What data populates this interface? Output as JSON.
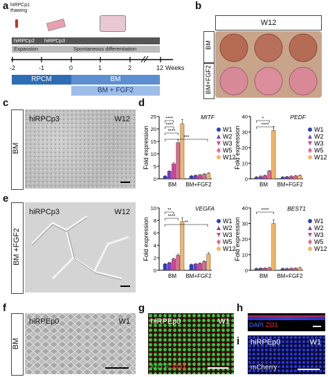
{
  "panels": {
    "a": {
      "label": "a",
      "top_note": "hiRPCp1\nthawing",
      "stage1": "hiRPCp2",
      "stage2": "hiRPCp3",
      "phase1": "Expansion",
      "phase2": "Spontaneous differentiation",
      "ticks": [
        "-2",
        "-1",
        "0",
        "1",
        "2",
        "12"
      ],
      "weeks_label": "Weeks",
      "rpcm": "RPCM",
      "bm": "BM",
      "bm_fgf2": "BM + FGF2",
      "colors": {
        "rpcm": "#2e6db3",
        "bm": "#5b8fd1",
        "bmfgf2": "#9dbde8",
        "stage": "#555555",
        "phase": "#bdbdbd"
      }
    },
    "b": {
      "label": "b",
      "title": "W12",
      "row1": "BM",
      "row2": "BM+FGF2"
    },
    "c": {
      "label": "c",
      "side": "BM",
      "sample": "hiRPCp3",
      "time": "W12"
    },
    "e": {
      "label": "e",
      "side": "BM +FGF2",
      "sample": "hiRPCp3",
      "time": "W12"
    },
    "d": {
      "label": "d"
    },
    "f": {
      "label": "f",
      "side": "BM",
      "sample": "hiRPEp0",
      "time": "W1"
    },
    "g": {
      "label": "g",
      "sample": "hiRPEp0",
      "time": "W1",
      "stain1": "MITF",
      "stain2": "ZO1"
    },
    "h": {
      "label": "h",
      "stain1": "DAPI",
      "stain2": "ZO1"
    },
    "i": {
      "label": "i",
      "sample": "hiRPEp0",
      "time": "W1",
      "stain": "mCherry"
    }
  },
  "chart_data": [
    {
      "type": "bar",
      "gene": "MITF",
      "ylabel": "Fold expression",
      "ylim": [
        0,
        25
      ],
      "yticks": [
        0,
        5,
        10,
        15,
        20,
        25
      ],
      "categories": [
        "BM",
        "BM+FGF2"
      ],
      "series": [
        {
          "name": "W1",
          "values": [
            1.0,
            1.1
          ]
        },
        {
          "name": "W2",
          "values": [
            3.0,
            1.3
          ]
        },
        {
          "name": "W3",
          "values": [
            6.0,
            1.5
          ]
        },
        {
          "name": "W5",
          "values": [
            14.5,
            1.8
          ]
        },
        {
          "name": "W12",
          "values": [
            22.0,
            2.2
          ]
        }
      ],
      "sig": [
        "****",
        "****",
        "****",
        "***"
      ]
    },
    {
      "type": "bar",
      "gene": "PEDF",
      "ylabel": "Fold expression",
      "ylim": [
        0,
        40
      ],
      "yticks": [
        0,
        10,
        20,
        30,
        40
      ],
      "categories": [
        "BM",
        "BM+FGF2"
      ],
      "series": [
        {
          "name": "W1",
          "values": [
            1.0,
            1.0
          ]
        },
        {
          "name": "W2",
          "values": [
            1.5,
            1.2
          ]
        },
        {
          "name": "W3",
          "values": [
            2.0,
            1.5
          ]
        },
        {
          "name": "W5",
          "values": [
            5.0,
            1.8
          ]
        },
        {
          "name": "W12",
          "values": [
            31.0,
            2.0
          ]
        }
      ],
      "sig": [
        "*",
        "****"
      ]
    },
    {
      "type": "bar",
      "gene": "VEGFA",
      "ylabel": "Fold expression",
      "ylim": [
        0,
        10
      ],
      "yticks": [
        0,
        2,
        4,
        6,
        8,
        10
      ],
      "categories": [
        "BM",
        "BM+FGF2"
      ],
      "series": [
        {
          "name": "W1",
          "values": [
            1.0,
            0.9
          ]
        },
        {
          "name": "W2",
          "values": [
            1.2,
            1.0
          ]
        },
        {
          "name": "W3",
          "values": [
            1.8,
            1.1
          ]
        },
        {
          "name": "W5",
          "values": [
            2.4,
            1.4
          ]
        },
        {
          "name": "W12",
          "values": [
            7.8,
            2.6
          ]
        }
      ],
      "sig": [
        "**",
        "****",
        "**"
      ]
    },
    {
      "type": "bar",
      "gene": "BEST1",
      "ylabel": "Fold expression",
      "ylim": [
        0,
        40
      ],
      "yticks": [
        0,
        10,
        20,
        30,
        40
      ],
      "categories": [
        "BM",
        "BM+FGF2"
      ],
      "series": [
        {
          "name": "W1",
          "values": [
            1.0,
            1.0
          ]
        },
        {
          "name": "W2",
          "values": [
            1.2,
            1.0
          ]
        },
        {
          "name": "W3",
          "values": [
            1.3,
            1.1
          ]
        },
        {
          "name": "W5",
          "values": [
            1.5,
            1.2
          ]
        },
        {
          "name": "W12",
          "values": [
            30.0,
            1.5
          ]
        }
      ],
      "sig": [
        "****"
      ]
    }
  ],
  "legend_colors": {
    "W1": "#2b3fbf",
    "W2": "#7b3fc4",
    "W3": "#d2459a",
    "W5": "#e06a8f",
    "W12": "#f5b562"
  }
}
